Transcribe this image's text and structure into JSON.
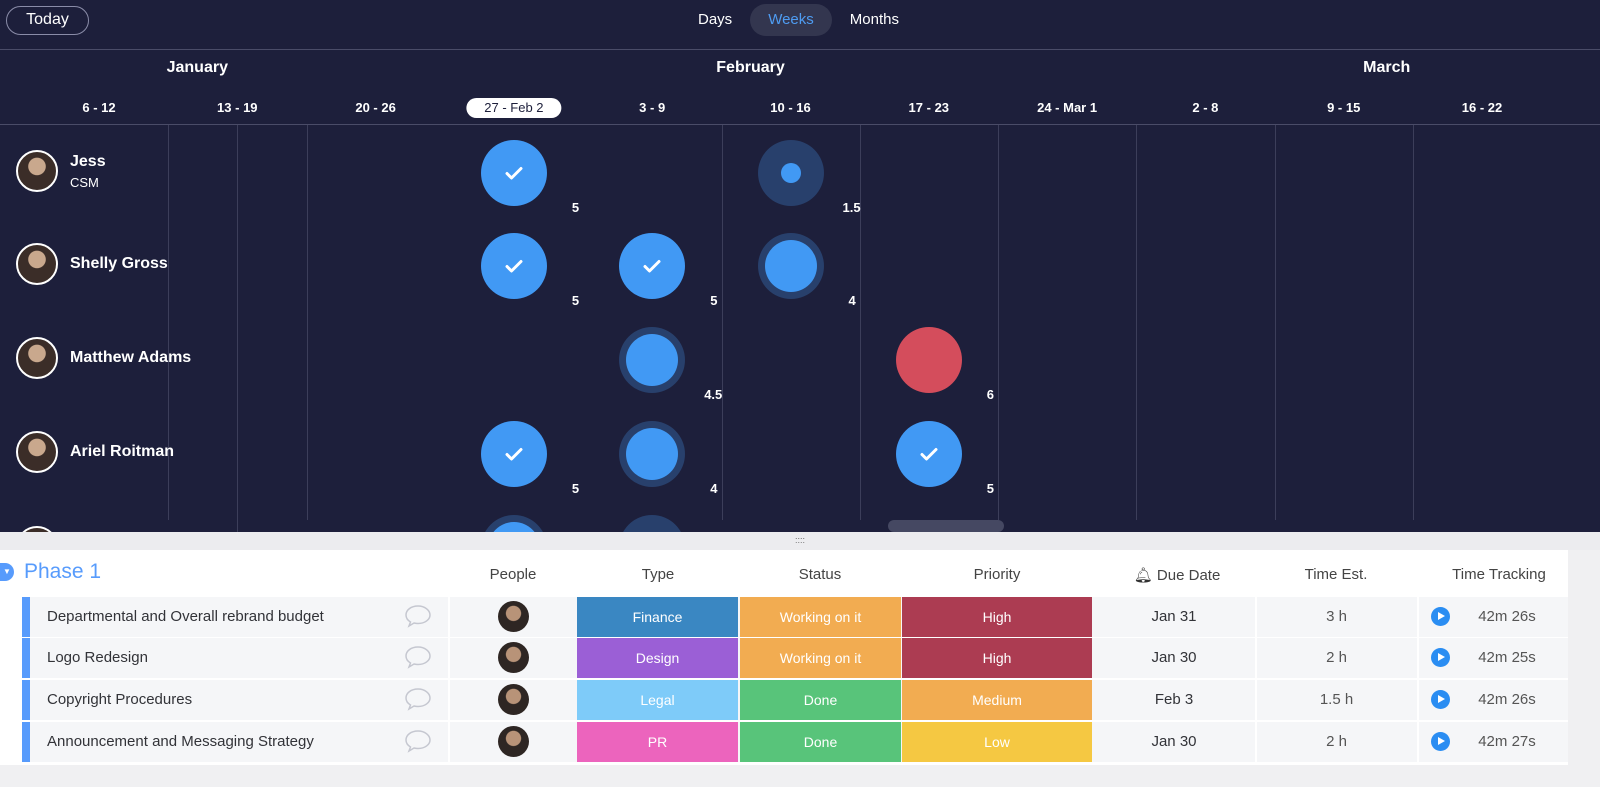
{
  "toolbar": {
    "today": "Today",
    "views": [
      "Days",
      "Weeks",
      "Months"
    ],
    "active_view": "Weeks"
  },
  "timeline": {
    "months": [
      {
        "label": "January",
        "week": 1
      },
      {
        "label": "February",
        "week": 5
      },
      {
        "label": "March",
        "week": 9.6
      }
    ],
    "weeks": [
      "6 - 12",
      "13 - 19",
      "20 - 26",
      "27 - Feb 2",
      "3 - 9",
      "10 - 16",
      "17 - 23",
      "24 - Mar 1",
      "2 - 8",
      "9 - 15",
      "16 - 22"
    ],
    "current_week": "27 - Feb 2",
    "people": [
      {
        "name": "Jess",
        "role": "CSM",
        "bubbles": [
          {
            "week": 3,
            "kind": "check",
            "value": "5"
          },
          {
            "week": 5,
            "kind": "dot",
            "value": "1.5"
          }
        ]
      },
      {
        "name": "Shelly Gross",
        "role": "",
        "bubbles": [
          {
            "week": 3,
            "kind": "check",
            "value": "5"
          },
          {
            "week": 4,
            "kind": "check",
            "value": "5"
          },
          {
            "week": 5,
            "kind": "ring",
            "value": "4"
          }
        ]
      },
      {
        "name": "Matthew Adams",
        "role": "",
        "bubbles": [
          {
            "week": 4,
            "kind": "ring",
            "value": "4.5"
          },
          {
            "week": 6,
            "kind": "red",
            "value": "6"
          }
        ]
      },
      {
        "name": "Ariel Roitman",
        "role": "",
        "bubbles": [
          {
            "week": 3,
            "kind": "check",
            "value": "5"
          },
          {
            "week": 4,
            "kind": "ring",
            "value": "4"
          },
          {
            "week": 6,
            "kind": "check",
            "value": "5"
          }
        ]
      }
    ]
  },
  "board": {
    "group_title": "Phase 1",
    "columns": [
      "People",
      "Type",
      "Status",
      "Priority",
      "Due Date",
      "Time Est.",
      "Time Tracking"
    ],
    "rows": [
      {
        "name": "Departmental and Overall rebrand budget",
        "type": "Finance",
        "type_color": "#3a87c2",
        "status": "Working on it",
        "status_color": "#f2ac51",
        "priority": "High",
        "priority_color": "#ac3c52",
        "due": "Jan 31",
        "est": "3 h",
        "tracked": "42m 26s"
      },
      {
        "name": "Logo Redesign",
        "type": "Design",
        "type_color": "#9b5fd6",
        "status": "Working on it",
        "status_color": "#f2ac51",
        "priority": "High",
        "priority_color": "#ac3c52",
        "due": "Jan 30",
        "est": "2 h",
        "tracked": "42m 25s"
      },
      {
        "name": "Copyright Procedures",
        "type": "Legal",
        "type_color": "#7ecbf9",
        "status": "Done",
        "status_color": "#58c47a",
        "priority": "Medium",
        "priority_color": "#f2ac51",
        "due": "Feb 3",
        "est": "1.5 h",
        "tracked": "42m 26s"
      },
      {
        "name": "Announcement and Messaging Strategy",
        "type": "PR",
        "type_color": "#ec64bd",
        "status": "Done",
        "status_color": "#58c47a",
        "priority": "Low",
        "priority_color": "#f5c842",
        "due": "Jan 30",
        "est": "2 h",
        "tracked": "42m 27s"
      }
    ]
  }
}
